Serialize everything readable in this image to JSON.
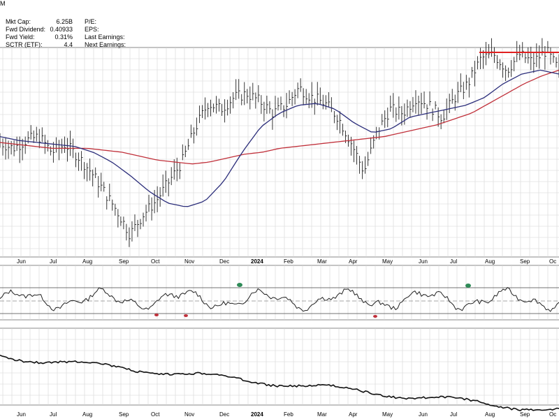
{
  "header": {
    "top_mark": "M"
  },
  "fundamentals_left": [
    {
      "label": "Mkt Cap:",
      "value": "6.25B"
    },
    {
      "label": "Fwd Dividend:",
      "value": "0.40933"
    },
    {
      "label": "Fwd Yield:",
      "value": "0.31%"
    },
    {
      "label": "SCTR (ETF):",
      "value": "4.4"
    }
  ],
  "fundamentals_right": [
    {
      "label": "P/E:"
    },
    {
      "label": "EPS:"
    },
    {
      "label": "Last Earnings:"
    },
    {
      "label": "Next Earnings:"
    }
  ],
  "colors": {
    "price_bars": "#222222",
    "ma_short": "#2b2d7a",
    "ma_long": "#c0303a",
    "resistance": "#e02020",
    "grid": "#d6d6d6",
    "rsi_high_fill": "#2e8b57",
    "rsi_low_fill": "#c0303a"
  },
  "chart_data": [
    {
      "type": "line",
      "panel": "price",
      "x_tick_labels": [
        "Jun",
        "Jul",
        "Aug",
        "Sep",
        "Oct",
        "Nov",
        "Dec",
        "2024",
        "Feb",
        "Mar",
        "Apr",
        "May",
        "Jun",
        "Jul",
        "Aug",
        "Sep",
        "Oc"
      ],
      "y_tick_labels": [],
      "price_anchors_relative": [
        55,
        52,
        56,
        58,
        50,
        54,
        48,
        40,
        30,
        20,
        8,
        18,
        25,
        35,
        45,
        62,
        75,
        72,
        78,
        80,
        76,
        70,
        74,
        83,
        78,
        75,
        68,
        55,
        40,
        60,
        72,
        70,
        78,
        74,
        68,
        78,
        85,
        98,
        100,
        92,
        100,
        96,
        102,
        92
      ],
      "ma_short_anchors_relative": [
        58,
        56,
        55,
        54,
        53,
        50,
        45,
        38,
        30,
        24,
        22,
        25,
        35,
        50,
        63,
        70,
        74,
        75,
        72,
        65,
        60,
        62,
        68,
        70,
        72,
        74,
        78,
        85,
        90,
        92,
        90
      ],
      "ma_long_anchors_relative": [
        55,
        54,
        53,
        52,
        52,
        52,
        51,
        50,
        48,
        46,
        45,
        44,
        45,
        47,
        49,
        50,
        52,
        53,
        54,
        55,
        56,
        57,
        58,
        60,
        62,
        64,
        67,
        70,
        75,
        80,
        85,
        89,
        92
      ]
    },
    {
      "type": "line",
      "panel": "rsi",
      "y_reference_lines": [
        "overbought",
        "mid",
        "oversold"
      ]
    },
    {
      "type": "line",
      "panel": "relative_strength",
      "trend": "declining"
    }
  ]
}
